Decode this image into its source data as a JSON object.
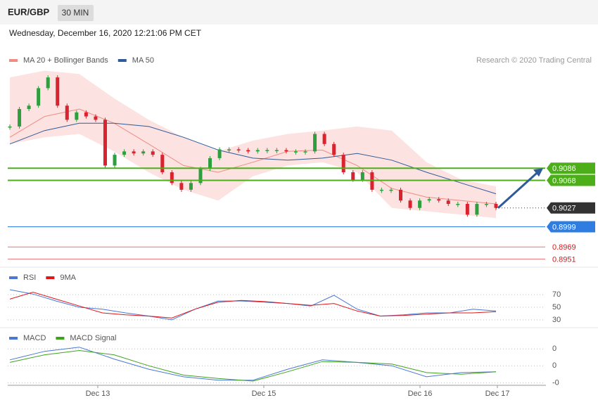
{
  "header": {
    "symbol": "EUR/GBP",
    "timeframe": "30 MIN",
    "timestamp": "Wednesday, December 16, 2020 12:21:06 PM CET"
  },
  "chart_data": [
    {
      "type": "candlestick",
      "attribution": "Research © 2020 Trading Central",
      "close": [
        0.9148,
        0.9174,
        0.9179,
        0.9205,
        0.9221,
        0.9179,
        0.9158,
        0.9169,
        0.9163,
        0.9158,
        0.909,
        0.9106,
        0.9111,
        0.9108,
        0.9111,
        0.9106,
        0.908,
        0.9064,
        0.9054,
        0.9064,
        0.9085,
        0.9101,
        0.9114,
        0.9114,
        0.9113,
        0.9111,
        0.9113,
        0.9113,
        0.9113,
        0.9111,
        0.9111,
        0.9111,
        0.9137,
        0.9122,
        0.9106,
        0.908,
        0.9069,
        0.908,
        0.9054,
        0.9054,
        0.9054,
        0.9038,
        0.9027,
        0.9038,
        0.904,
        0.9038,
        0.9033,
        0.9033,
        0.9017,
        0.9033,
        0.9033,
        0.9027
      ],
      "up_color": "#2e9e3e",
      "down_color": "#d9232e",
      "series": [
        {
          "name": "MA 20 + Bollinger Bands",
          "color": "#f28b82",
          "values": [
            0.9132,
            0.9163,
            0.9174,
            0.9153,
            0.9122,
            0.909,
            0.908,
            0.9095,
            0.9111,
            0.9113,
            0.909,
            0.9056,
            0.9043,
            0.9038,
            0.9033
          ],
          "upper": [
            0.9221,
            0.9231,
            0.9226,
            0.919,
            0.9158,
            0.9132,
            0.9111,
            0.9127,
            0.9137,
            0.9142,
            0.9148,
            0.9142,
            0.9095,
            0.9069,
            0.9059
          ],
          "lower": [
            0.9122,
            0.9132,
            0.9137,
            0.9111,
            0.908,
            0.9054,
            0.9038,
            0.9074,
            0.909,
            0.9095,
            0.908,
            0.9027,
            0.9022,
            0.9017,
            0.9012
          ]
        },
        {
          "name": "MA 50",
          "color": "#2f5b9a",
          "values": [
            0.9122,
            0.9142,
            0.9153,
            0.9153,
            0.9148,
            0.9132,
            0.9113,
            0.9101,
            0.9098,
            0.9101,
            0.9108,
            0.9098,
            0.908,
            0.9064,
            0.9048
          ]
        }
      ],
      "levels": [
        {
          "value": 0.9086,
          "color": "#4caf1a",
          "style": "tag"
        },
        {
          "value": 0.9068,
          "color": "#4caf1a",
          "style": "tag"
        },
        {
          "value": 0.9027,
          "color": "#333333",
          "style": "tag-dotted"
        },
        {
          "value": 0.8999,
          "color": "#2f7de1",
          "style": "tag"
        },
        {
          "value": 0.8969,
          "color": "#e0161b",
          "style": "text"
        },
        {
          "value": 0.8951,
          "color": "#e0161b",
          "style": "text"
        }
      ],
      "ylim": [
        0.8941,
        0.9242
      ],
      "x_labels": [
        "Dec 13",
        "Dec 15",
        "Dec 16",
        "Dec 17"
      ]
    },
    {
      "type": "line",
      "series": [
        {
          "name": "RSI",
          "color": "#4a78d4",
          "values": [
            78,
            71,
            60,
            50,
            47,
            41,
            36,
            30,
            47,
            60,
            60,
            58,
            56,
            52,
            69,
            47,
            36,
            38,
            41,
            41,
            47,
            44
          ]
        },
        {
          "name": "9MA",
          "color": "#e0161b",
          "values": [
            63,
            74,
            63,
            52,
            41,
            38,
            36,
            33,
            47,
            58,
            61,
            59,
            56,
            53,
            56,
            44,
            36,
            37,
            39,
            41,
            41,
            43
          ]
        }
      ],
      "ylim": [
        22,
        97
      ],
      "yticks": [
        70,
        50,
        30
      ]
    },
    {
      "type": "line",
      "series": [
        {
          "name": "MACD",
          "color": "#4a78d4",
          "values": [
            0.0007,
            0.0017,
            0.0022,
            0.0008,
            -0.0004,
            -0.0013,
            -0.0017,
            -0.0017,
            -0.0004,
            0.0007,
            0.0004,
            0,
            -0.0013,
            -0.0008,
            -0.0007
          ]
        },
        {
          "name": "MACD Signal",
          "color": "#3fa31c",
          "values": [
            0.0004,
            0.0013,
            0.0018,
            0.0013,
            0,
            -0.0011,
            -0.0015,
            -0.0018,
            -0.0007,
            0.0005,
            0.0004,
            0.0002,
            -0.0008,
            -0.001,
            -0.0007
          ]
        }
      ],
      "ylim": [
        -0.0023,
        0.0035
      ],
      "yticks": [
        {
          "value": 0.002,
          "label": "0"
        },
        0,
        {
          "value": -0.002,
          "label": "-0"
        }
      ]
    }
  ]
}
